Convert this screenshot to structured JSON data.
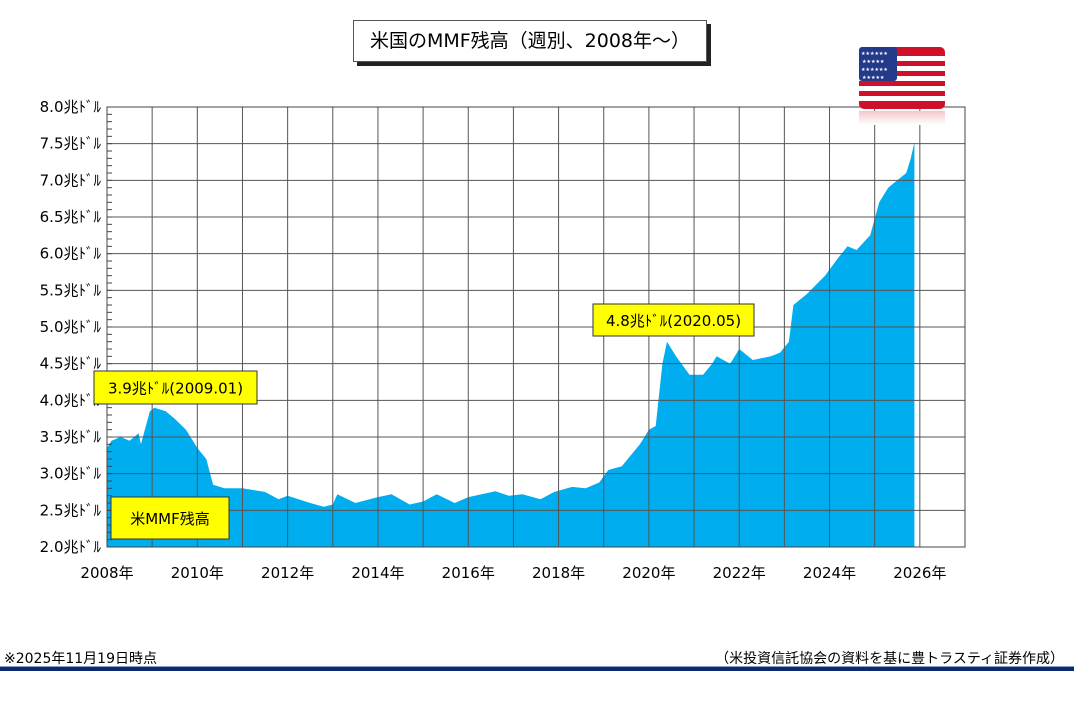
{
  "title": "米国のMMF残高（週別、2008年～）",
  "footer": {
    "note": "※2025年11月19日時点",
    "source": "（米投資信託協会の資料を基に豊トラスティ証券作成）"
  },
  "flag_icon": "us-flag-icon",
  "colors": {
    "area": "#00aeef",
    "annotation_bg": "#ffff00"
  },
  "chart_data": {
    "type": "area",
    "title": "米国のMMF残高（週別、2008年～）",
    "legend": {
      "label": "米MMF残高",
      "placement": "bottom-left"
    },
    "xlim": [
      2008,
      2027
    ],
    "ylim": [
      2.0,
      8.0
    ],
    "grid": true,
    "x_ticks": [
      "2008年",
      "2010年",
      "2012年",
      "2014年",
      "2016年",
      "2018年",
      "2020年",
      "2022年",
      "2024年",
      "2026年"
    ],
    "y_ticks": [
      "2.0兆ﾄﾞﾙ",
      "2.5兆ﾄﾞﾙ",
      "3.0兆ﾄﾞﾙ",
      "3.5兆ﾄﾞﾙ",
      "4.0兆ﾄﾞﾙ",
      "4.5兆ﾄﾞﾙ",
      "5.0兆ﾄﾞﾙ",
      "5.5兆ﾄﾞﾙ",
      "6.0兆ﾄﾞﾙ",
      "6.5兆ﾄﾞﾙ",
      "7.0兆ﾄﾞﾙ",
      "7.5兆ﾄﾞﾙ",
      "8.0兆ﾄﾞﾙ"
    ],
    "annotations": [
      {
        "text": "3.9兆ﾄﾞﾙ(2009.01)",
        "x": 2009.05,
        "y": 3.9
      },
      {
        "text": "4.8兆ﾄﾞﾙ(2020.05)",
        "x": 2020.4,
        "y": 4.8
      }
    ],
    "series": [
      {
        "name": "米MMF残高",
        "x": [
          2008.0,
          2008.1,
          2008.3,
          2008.5,
          2008.7,
          2008.75,
          2008.95,
          2009.05,
          2009.3,
          2009.5,
          2009.75,
          2010.0,
          2010.2,
          2010.35,
          2010.6,
          2011.0,
          2011.5,
          2011.8,
          2012.0,
          2012.5,
          2012.8,
          2013.0,
          2013.1,
          2013.5,
          2014.0,
          2014.3,
          2014.7,
          2015.0,
          2015.3,
          2015.7,
          2016.0,
          2016.6,
          2016.9,
          2017.2,
          2017.6,
          2017.9,
          2018.3,
          2018.6,
          2018.9,
          2019.1,
          2019.4,
          2019.8,
          2020.0,
          2020.15,
          2020.3,
          2020.4,
          2020.6,
          2020.9,
          2021.2,
          2021.4,
          2021.5,
          2021.8,
          2022.0,
          2022.3,
          2022.7,
          2022.9,
          2023.1,
          2023.2,
          2023.5,
          2023.9,
          2024.2,
          2024.4,
          2024.6,
          2024.9,
          2025.1,
          2025.3,
          2025.5,
          2025.7,
          2025.8,
          2025.88
        ],
        "y": [
          3.35,
          3.45,
          3.5,
          3.45,
          3.55,
          3.4,
          3.85,
          3.9,
          3.85,
          3.75,
          3.6,
          3.35,
          3.2,
          2.85,
          2.8,
          2.8,
          2.75,
          2.65,
          2.7,
          2.6,
          2.55,
          2.58,
          2.72,
          2.6,
          2.68,
          2.72,
          2.58,
          2.62,
          2.72,
          2.6,
          2.68,
          2.76,
          2.7,
          2.72,
          2.65,
          2.75,
          2.82,
          2.8,
          2.88,
          3.05,
          3.1,
          3.4,
          3.6,
          3.65,
          4.5,
          4.8,
          4.6,
          4.35,
          4.35,
          4.5,
          4.6,
          4.5,
          4.7,
          4.55,
          4.6,
          4.65,
          4.8,
          5.3,
          5.45,
          5.7,
          5.95,
          6.1,
          6.05,
          6.25,
          6.7,
          6.9,
          7.0,
          7.1,
          7.3,
          7.52
        ]
      }
    ]
  }
}
